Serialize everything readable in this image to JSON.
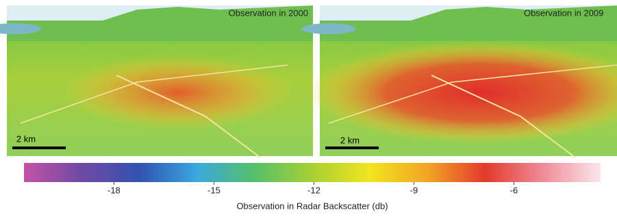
{
  "panels": [
    {
      "title": "Observation in 2000",
      "scale_label": "2 km"
    },
    {
      "title": "Observation in 2009",
      "scale_label": "2 km"
    }
  ],
  "colorbar": {
    "lim": [
      -20.7,
      -3.4
    ],
    "ticks": [
      -18,
      -15,
      -12,
      -9,
      -6
    ],
    "label": "Observation in Radar Backscatter (db)",
    "colors": [
      "#c452a6",
      "#6f4aa3",
      "#3152b0",
      "#3aa8de",
      "#55c06a",
      "#a8d034",
      "#f2e41e",
      "#f2a424",
      "#e23a2c",
      "#ef8c98",
      "#fbe6ea"
    ]
  }
}
